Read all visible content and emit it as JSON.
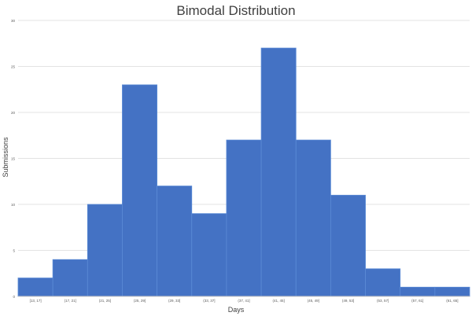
{
  "chart_data": {
    "type": "bar",
    "title": "Bimodal Distribution",
    "xlabel": "Days",
    "ylabel": "Submissions",
    "categories": [
      "[13, 17]",
      "(17, 21]",
      "(21, 25]",
      "(25, 29]",
      "(29, 33]",
      "(33, 37]",
      "(37, 41]",
      "(41, 45]",
      "(45, 49]",
      "(49, 53]",
      "(53, 57]",
      "(57, 61]",
      "(61, 65]"
    ],
    "values": [
      2,
      4,
      10,
      23,
      12,
      9,
      17,
      27,
      17,
      11,
      3,
      1,
      1
    ],
    "yticks": [
      "0",
      "5",
      "10",
      "15",
      "20",
      "25",
      "30"
    ],
    "ylim": [
      0,
      30
    ],
    "grid": true,
    "bar_color": "#4472C4",
    "bar_edge_color": "#5B8BD6",
    "gridline_color": "#e3e3e3",
    "text_color": "#595959"
  }
}
